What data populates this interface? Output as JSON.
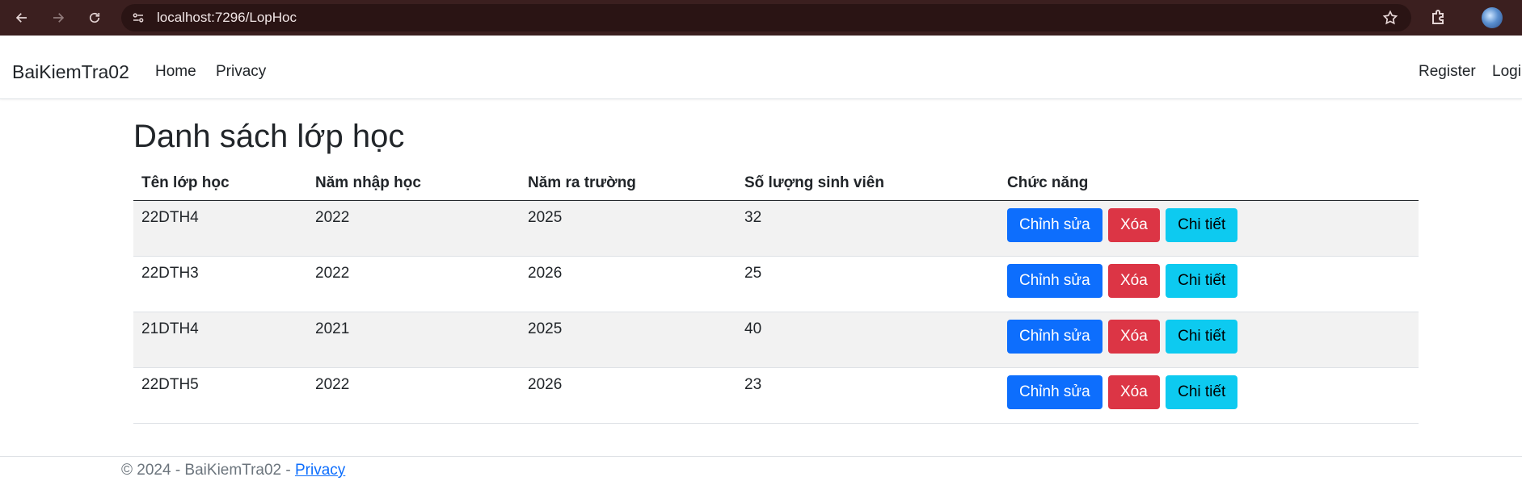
{
  "browser": {
    "url": "localhost:7296/LopHoc"
  },
  "navbar": {
    "brand": "BaiKiemTra02",
    "links": [
      {
        "label": "Home"
      },
      {
        "label": "Privacy"
      }
    ],
    "right_links": [
      {
        "label": "Register"
      },
      {
        "label": "Login"
      }
    ]
  },
  "main": {
    "title": "Danh sách lớp học",
    "table": {
      "headers": [
        "Tên lớp học",
        "Năm nhập học",
        "Năm ra trường",
        "Số lượng sinh viên",
        "Chức năng"
      ],
      "rows": [
        [
          "22DTH4",
          "2022",
          "2025",
          "32"
        ],
        [
          "22DTH3",
          "2022",
          "2026",
          "25"
        ],
        [
          "21DTH4",
          "2021",
          "2025",
          "40"
        ],
        [
          "22DTH5",
          "2022",
          "2026",
          "23"
        ]
      ],
      "actions": {
        "edit": "Chỉnh sửa",
        "delete": "Xóa",
        "detail": "Chi tiết"
      }
    }
  },
  "footer": {
    "text": "© 2024 - BaiKiemTra02 - ",
    "link": "Privacy"
  },
  "colors": {
    "edit": "#0d6efd",
    "delete": "#dc3545",
    "detail": "#0dcaf0",
    "chrome": "#3b1f1f"
  }
}
